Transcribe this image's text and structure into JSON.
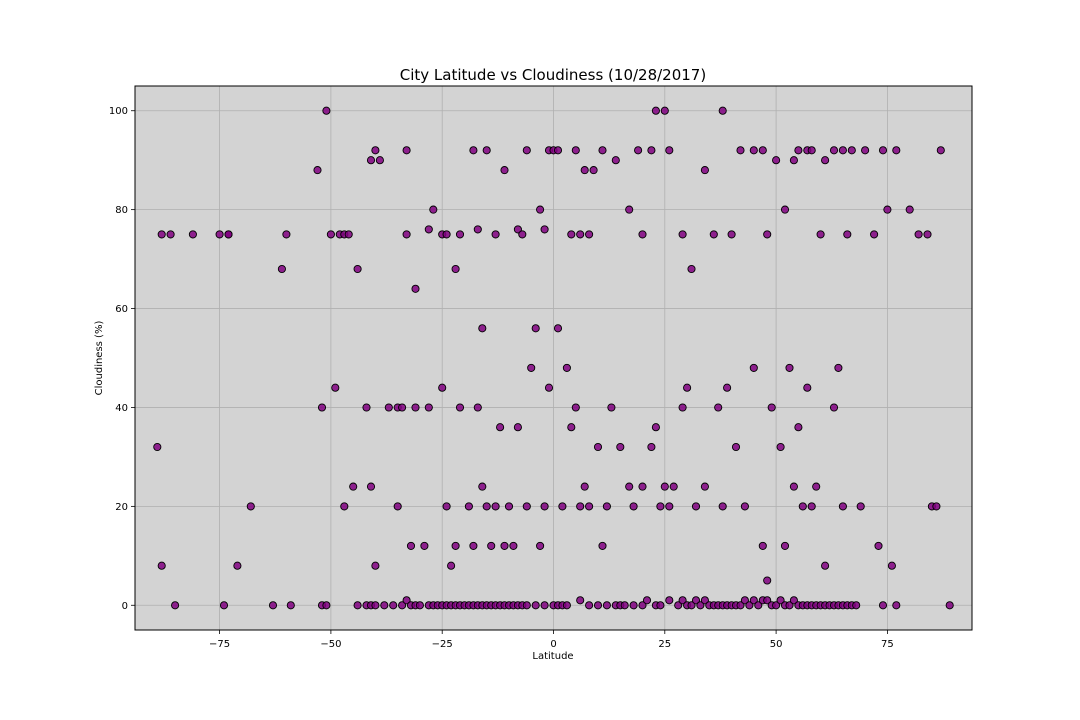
{
  "chart_data": {
    "type": "scatter",
    "title": "City Latitude vs Cloudiness (10/28/2017)",
    "xlabel": "Latitude",
    "ylabel": "Cloudiness (%)",
    "xlim": [
      -94,
      94
    ],
    "ylim": [
      -5,
      105
    ],
    "xticks": [
      -75,
      -50,
      -25,
      0,
      25,
      50,
      75
    ],
    "yticks": [
      0,
      20,
      40,
      60,
      80,
      100
    ],
    "grid": true,
    "colors": {
      "plot_bg": "#d3d3d3",
      "marker_fill": "#800080",
      "marker_edge": "#000000",
      "grid": "#b0b0b0"
    },
    "series": [
      {
        "x": [
          -89,
          -88,
          -86,
          -81,
          -75,
          -73,
          -73,
          -61,
          -60,
          -53,
          -51,
          -50,
          -48,
          -47,
          -46,
          -44,
          -41,
          -40,
          -39,
          -35,
          -33,
          -33,
          -31,
          -28,
          -27,
          -25,
          -24,
          -22,
          -21,
          -18,
          -17,
          -16,
          -15,
          -13,
          -11,
          -8,
          -7,
          -6,
          -3,
          -2,
          -1,
          0,
          1,
          4,
          5,
          6,
          7,
          8,
          9,
          11,
          14,
          17,
          19,
          20,
          22,
          23,
          25,
          26,
          29,
          31,
          34,
          36,
          38,
          40,
          42,
          45,
          47,
          48,
          50,
          52,
          54,
          55,
          57,
          58,
          60,
          61,
          63,
          65,
          66,
          67,
          70,
          72,
          74,
          75,
          77,
          80,
          82,
          84,
          87
        ],
        "y": [
          32,
          75,
          75,
          75,
          75,
          75,
          75,
          68,
          75,
          88,
          100,
          75,
          75,
          75,
          75,
          68,
          90,
          92,
          90,
          40,
          92,
          75,
          64,
          76,
          80,
          75,
          75,
          68,
          75,
          92,
          76,
          56,
          92,
          75,
          88,
          76,
          75,
          92,
          80,
          76,
          92,
          92,
          92,
          75,
          92,
          75,
          88,
          75,
          88,
          92,
          90,
          80,
          92,
          75,
          92,
          100,
          100,
          92,
          75,
          68,
          88,
          75,
          100,
          75,
          92,
          92,
          92,
          75,
          90,
          80,
          90,
          92,
          92,
          92,
          75,
          90,
          92,
          92,
          75,
          92,
          92,
          75,
          92,
          80,
          92,
          80,
          75,
          75,
          92
        ]
      },
      {
        "x": [
          -88,
          -85,
          -74,
          -68,
          -71,
          -63,
          -59,
          -52,
          -51,
          -44,
          -42,
          -41,
          -40,
          -38,
          -36,
          -34,
          -33,
          -32,
          -31,
          -30,
          -28,
          -27,
          -26,
          -25,
          -24,
          -23,
          -22,
          -21,
          -20,
          -19,
          -18,
          -17,
          -16,
          -15,
          -14,
          -13,
          -12,
          -11,
          -10,
          -9,
          -8,
          -7,
          -6,
          -4,
          -2,
          0,
          1,
          2,
          3,
          6,
          8,
          10,
          12,
          14,
          15,
          16,
          18,
          20,
          21,
          23,
          24,
          26,
          28,
          29,
          30,
          31,
          32,
          33,
          34,
          35,
          36,
          37,
          38,
          39,
          40,
          41,
          42,
          43,
          44,
          45,
          46,
          47,
          48,
          49,
          50,
          51,
          52,
          53,
          54,
          55,
          56,
          57,
          58,
          59,
          60,
          61,
          62,
          63,
          64,
          65,
          66,
          67,
          68,
          74,
          77,
          89
        ],
        "y": [
          8,
          0,
          0,
          20,
          8,
          0,
          0,
          0,
          0,
          0,
          0,
          0,
          0,
          0,
          0,
          0,
          1,
          0,
          0,
          0,
          0,
          0,
          0,
          0,
          0,
          0,
          0,
          0,
          0,
          0,
          0,
          0,
          0,
          0,
          0,
          0,
          0,
          0,
          0,
          0,
          0,
          0,
          0,
          0,
          0,
          0,
          0,
          0,
          0,
          1,
          0,
          0,
          0,
          0,
          0,
          0,
          0,
          0,
          1,
          0,
          0,
          1,
          0,
          1,
          0,
          0,
          1,
          0,
          1,
          0,
          0,
          0,
          0,
          0,
          0,
          0,
          0,
          1,
          0,
          1,
          0,
          1,
          1,
          0,
          0,
          1,
          0,
          0,
          1,
          0,
          0,
          0,
          0,
          0,
          0,
          0,
          0,
          0,
          0,
          0,
          0,
          0,
          0,
          0,
          0,
          0
        ]
      },
      {
        "x": [
          -52,
          -49,
          -47,
          -45,
          -42,
          -41,
          -40,
          -37,
          -35,
          -34,
          -32,
          -31,
          -29,
          -28,
          -25,
          -24,
          -23,
          -22,
          -21,
          -19,
          -18,
          -17,
          -16,
          -15,
          -14,
          -13,
          -12,
          -11,
          -10,
          -9,
          -8,
          -6,
          -5,
          -4,
          -3,
          -2,
          -1,
          1,
          2,
          3,
          4,
          5,
          6,
          7,
          8,
          10,
          11,
          12,
          13,
          15,
          17,
          18,
          20,
          22,
          23,
          24,
          25,
          26,
          27,
          29,
          30,
          32,
          34,
          37,
          38,
          39,
          41,
          43,
          45,
          47,
          48,
          49,
          51,
          52,
          53,
          54,
          55,
          56,
          57,
          58,
          59,
          61,
          63,
          64,
          65,
          69,
          73,
          76,
          85,
          86
        ],
        "y": [
          40,
          44,
          20,
          24,
          40,
          24,
          8,
          40,
          20,
          40,
          12,
          40,
          12,
          40,
          44,
          20,
          8,
          12,
          40,
          20,
          12,
          40,
          24,
          20,
          12,
          20,
          36,
          12,
          20,
          12,
          36,
          20,
          48,
          56,
          12,
          20,
          44,
          56,
          20,
          48,
          36,
          40,
          20,
          24,
          20,
          32,
          12,
          20,
          40,
          32,
          24,
          20,
          24,
          32,
          36,
          20,
          24,
          20,
          24,
          40,
          44,
          20,
          24,
          40,
          20,
          44,
          32,
          20,
          48,
          12,
          5,
          40,
          32,
          12,
          48,
          24,
          36,
          20,
          44,
          20,
          24,
          8,
          40,
          48,
          20,
          20,
          12,
          8,
          20,
          20
        ]
      }
    ]
  }
}
